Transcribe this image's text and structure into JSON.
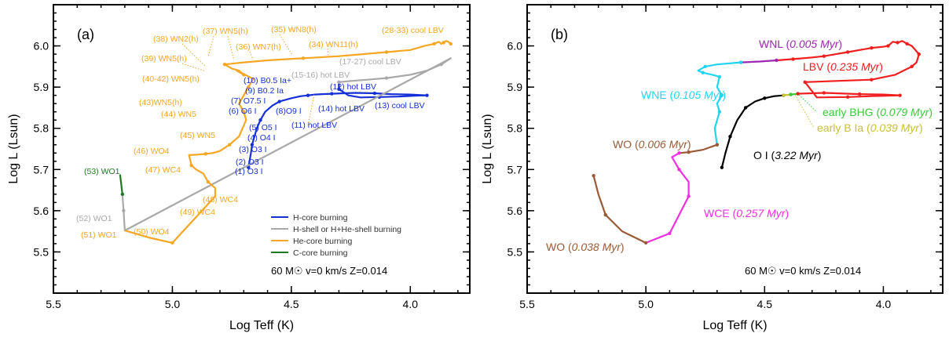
{
  "chart_data": [
    {
      "type": "line",
      "panel_label": "(a)",
      "xlabel": "Log Teff (K)",
      "ylabel": "Log L (Lsun)",
      "xlim": [
        5.5,
        3.75
      ],
      "ylim": [
        5.4,
        6.1
      ],
      "x_ticks": [
        "5.5",
        "5.0",
        "4.5",
        "4.0"
      ],
      "y_ticks": [
        "5.5",
        "5.6",
        "5.7",
        "5.8",
        "5.9",
        "6.0"
      ],
      "note": "60 M☉  v=0 km/s Z=0.014",
      "legend_position": "bottom-right",
      "series": [
        {
          "name": "H-core burning",
          "color": "#1530d8",
          "x": [
            4.68,
            4.676,
            4.67,
            4.665,
            4.655,
            4.645,
            4.63,
            4.61,
            4.58,
            4.55,
            4.5,
            4.46,
            4.43,
            4.4,
            4.37,
            4.33,
            4.28,
            4.23,
            4.15,
            4.08,
            4.0,
            3.93,
            3.98,
            4.05,
            4.13,
            4.21,
            4.26,
            4.3,
            4.3
          ],
          "y": [
            5.705,
            5.72,
            5.74,
            5.76,
            5.78,
            5.8,
            5.82,
            5.84,
            5.855,
            5.865,
            5.873,
            5.878,
            5.88,
            5.882,
            5.883,
            5.884,
            5.885,
            5.886,
            5.885,
            5.883,
            5.882,
            5.88,
            5.879,
            5.877,
            5.876,
            5.875,
            5.88,
            5.895,
            5.912
          ]
        },
        {
          "name": "H-shell or H+He-shell burning",
          "color": "#a8a8a8",
          "x": [
            4.3,
            4.25,
            4.18,
            4.1,
            4.0,
            3.93,
            3.87,
            3.83,
            5.2,
            5.205,
            5.21
          ],
          "y": [
            5.912,
            5.915,
            5.918,
            5.922,
            5.93,
            5.94,
            5.955,
            5.97,
            5.552,
            5.6,
            5.64
          ]
        },
        {
          "name": "He-core burning",
          "color": "#f5a623",
          "x": [
            3.83,
            3.84,
            3.85,
            3.86,
            3.87,
            3.88,
            3.9,
            3.94,
            4.0,
            4.1,
            4.2,
            4.3,
            4.45,
            4.6,
            4.7,
            4.78,
            4.75,
            4.72,
            4.7,
            4.73,
            4.66,
            4.68,
            4.7,
            4.72,
            4.7,
            4.69,
            4.72,
            4.76,
            4.8,
            4.83,
            4.86,
            4.9,
            4.93,
            4.92,
            4.9,
            4.87,
            4.85,
            4.82,
            4.82,
            5.0,
            5.1,
            5.2
          ],
          "y": [
            6.005,
            6.01,
            6.012,
            6.008,
            6.005,
            6.01,
            6.005,
            6.0,
            5.99,
            5.985,
            5.98,
            5.975,
            5.97,
            5.965,
            5.96,
            5.955,
            5.945,
            5.94,
            5.93,
            5.94,
            5.92,
            5.9,
            5.88,
            5.86,
            5.84,
            5.82,
            5.78,
            5.76,
            5.745,
            5.74,
            5.738,
            5.736,
            5.735,
            5.71,
            5.7,
            5.69,
            5.67,
            5.655,
            5.635,
            5.522,
            5.535,
            5.552
          ]
        },
        {
          "name": "C-core burning",
          "color": "#1f7a1f",
          "x": [
            5.21,
            5.215,
            5.22
          ],
          "y": [
            5.64,
            5.665,
            5.688
          ]
        }
      ],
      "annotations": [
        {
          "text": "(28-33) cool LBV",
          "color": "#f5a623"
        },
        {
          "text": "(35) WN8(h)",
          "color": "#f5a623"
        },
        {
          "text": "(37) WN5(h)",
          "color": "#f5a623"
        },
        {
          "text": "(34) WN11(h)",
          "color": "#f5a623"
        },
        {
          "text": "(36) WN7(h)",
          "color": "#f5a623"
        },
        {
          "text": "(38) WN2(h)",
          "color": "#f5a623"
        },
        {
          "text": "(39) WN5(h)",
          "color": "#f5a623"
        },
        {
          "text": "(17-27) cool LBV",
          "color": "#a8a8a8"
        },
        {
          "text": "(15-16) hot LBV",
          "color": "#a8a8a8"
        },
        {
          "text": "(10) B0.5 Ia+",
          "color": "#1530d8"
        },
        {
          "text": "(9) B0.2 Ia",
          "color": "#1530d8"
        },
        {
          "text": "(7) O7.5 I",
          "color": "#1530d8"
        },
        {
          "text": "(6) O6 I",
          "color": "#1530d8"
        },
        {
          "text": "(8)O9 I",
          "color": "#1530d8"
        },
        {
          "text": "(12) hot LBV",
          "color": "#1530d8"
        },
        {
          "text": "(14) hot LBV",
          "color": "#1530d8"
        },
        {
          "text": "(13) cool LBV",
          "color": "#1530d8"
        },
        {
          "text": "(11) hot LBV",
          "color": "#1530d8"
        },
        {
          "text": "(40-42) WN5(h)",
          "color": "#f5a623"
        },
        {
          "text": "(43)WN5(h)",
          "color": "#f5a623"
        },
        {
          "text": "(44) WN5",
          "color": "#f5a623"
        },
        {
          "text": "(45) WN5",
          "color": "#f5a623"
        },
        {
          "text": "(5) O5 I",
          "color": "#1530d8"
        },
        {
          "text": "(4) O4 I",
          "color": "#1530d8"
        },
        {
          "text": "(3) O3 I",
          "color": "#1530d8"
        },
        {
          "text": "(2) O3 I",
          "color": "#1530d8"
        },
        {
          "text": "(1) O3 I",
          "color": "#1530d8"
        },
        {
          "text": "(46) WO4",
          "color": "#f5a623"
        },
        {
          "text": "(47) WC4",
          "color": "#f5a623"
        },
        {
          "text": "(48) WC4",
          "color": "#f5a623"
        },
        {
          "text": "(49) WC4",
          "color": "#f5a623"
        },
        {
          "text": "(50) WO4",
          "color": "#f5a623"
        },
        {
          "text": "(51) WO1",
          "color": "#f5a623"
        },
        {
          "text": "(52) WO1",
          "color": "#a8a8a8"
        },
        {
          "text": "(53) WO1",
          "color": "#1f7a1f"
        }
      ]
    },
    {
      "type": "line",
      "panel_label": "(b)",
      "xlabel": "Log Teff (K)",
      "ylabel": "Log L (Lsun)",
      "xlim": [
        5.5,
        3.75
      ],
      "ylim": [
        5.4,
        6.1
      ],
      "x_ticks": [
        "5.5",
        "5.0",
        "4.5",
        "4.0"
      ],
      "y_ticks": [
        "5.5",
        "5.6",
        "5.7",
        "5.8",
        "5.9",
        "6.0"
      ],
      "note": "60 M☉  v=0 km/s Z=0.014",
      "series": [
        {
          "name": "O I",
          "duration": "3.22 Myr",
          "color": "#000000",
          "x": [
            4.68,
            4.665,
            4.645,
            4.615,
            4.58,
            4.54,
            4.5,
            4.46,
            4.42
          ],
          "y": [
            5.705,
            5.74,
            5.78,
            5.82,
            5.85,
            5.865,
            5.873,
            5.878,
            5.88
          ]
        },
        {
          "name": "early B Ia",
          "duration": "0.039 Myr",
          "color": "#c8c030",
          "x": [
            4.42,
            4.405,
            4.39
          ],
          "y": [
            5.88,
            5.881,
            5.882
          ]
        },
        {
          "name": "early BHG",
          "duration": "0.079 Myr",
          "color": "#3cc83c",
          "x": [
            4.39,
            4.375,
            4.36
          ],
          "y": [
            5.882,
            5.883,
            5.884
          ]
        },
        {
          "name": "LBV",
          "duration": "0.235 Myr",
          "color": "#f01e1e",
          "x": [
            4.36,
            4.3,
            4.25,
            4.2,
            4.1,
            4.0,
            3.93,
            4.05,
            4.15,
            4.28,
            4.33,
            4.2,
            4.05,
            3.95,
            3.88,
            3.86,
            3.85,
            3.88,
            3.9,
            3.92,
            3.94,
            3.96,
            3.98,
            4.0,
            4.05,
            4.1,
            4.15,
            4.2,
            4.25,
            4.3,
            4.38,
            4.45
          ],
          "y": [
            5.884,
            5.885,
            5.886,
            5.885,
            5.883,
            5.882,
            5.88,
            5.878,
            5.876,
            5.875,
            5.912,
            5.915,
            5.918,
            5.93,
            5.95,
            5.96,
            5.98,
            6.0,
            6.005,
            6.012,
            6.008,
            6.01,
            6.0,
            5.998,
            5.995,
            5.99,
            5.985,
            5.98,
            5.975,
            5.972,
            5.968,
            5.965
          ]
        },
        {
          "name": "WNL",
          "duration": "0.005 Myr",
          "color": "#9c27b0",
          "x": [
            4.45,
            4.52,
            4.6
          ],
          "y": [
            5.965,
            5.962,
            5.96
          ]
        },
        {
          "name": "WNE",
          "duration": "0.105 Myr",
          "color": "#22d4f0",
          "x": [
            4.6,
            4.7,
            4.75,
            4.78,
            4.76,
            4.72,
            4.69,
            4.7,
            4.68,
            4.7,
            4.69,
            4.71,
            4.7
          ],
          "y": [
            5.96,
            5.955,
            5.95,
            5.94,
            5.935,
            5.93,
            5.925,
            5.9,
            5.88,
            5.86,
            5.84,
            5.8,
            5.76
          ]
        },
        {
          "name": "WO",
          "duration": "0.006 Myr",
          "color": "#9b5a36",
          "x": [
            4.7,
            4.76,
            4.82,
            4.86
          ],
          "y": [
            5.76,
            5.748,
            5.742,
            5.74
          ]
        },
        {
          "name": "WCE",
          "duration": "0.257 Myr",
          "color": "#f030e0",
          "x": [
            4.86,
            4.89,
            4.86,
            4.82,
            4.82,
            4.86,
            4.9,
            5.0
          ],
          "y": [
            5.74,
            5.73,
            5.7,
            5.67,
            5.635,
            5.59,
            5.545,
            5.522
          ]
        },
        {
          "name": "WO",
          "duration": "0.038 Myr",
          "color": "#9b5a36",
          "x": [
            5.0,
            5.1,
            5.17,
            5.2,
            5.22
          ],
          "y": [
            5.522,
            5.55,
            5.59,
            5.64,
            5.685
          ]
        }
      ],
      "labels": [
        {
          "prefix": "WNL (",
          "value": "0.005 Myr",
          "color": "#9c27b0"
        },
        {
          "prefix": "LBV (",
          "value": "0.235 Myr",
          "color": "#f01e1e"
        },
        {
          "prefix": "WNE (",
          "value": "0.105 Myr",
          "color": "#22d4f0"
        },
        {
          "prefix": "early BHG (",
          "value": "0.079 Myr",
          "color": "#3cc83c"
        },
        {
          "prefix": "early B Ia (",
          "value": "0.039 Myr",
          "color": "#c8c030"
        },
        {
          "prefix": "WO (",
          "value": "0.006 Myr",
          "color": "#9b5a36"
        },
        {
          "prefix": "O I (",
          "value": "3.22 Myr",
          "color": "#000000"
        },
        {
          "prefix": "WCE (",
          "value": "0.257 Myr",
          "color": "#f030e0"
        },
        {
          "prefix": "WO (",
          "value": "0.038 Myr",
          "color": "#9b5a36"
        }
      ]
    }
  ]
}
